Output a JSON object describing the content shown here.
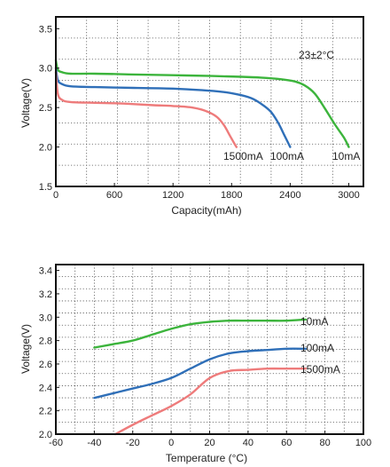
{
  "chart_data": [
    {
      "type": "line",
      "xlabel": "Capacity(mAh)",
      "ylabel": "Voltage(V)",
      "xlim": [
        0,
        3150
      ],
      "ylim": [
        1.5,
        3.65
      ],
      "xticks": [
        0,
        600,
        1200,
        1800,
        2400,
        3000
      ],
      "xtick_labels": [
        "0",
        "600",
        "1200",
        "1800",
        "2400",
        "3000"
      ],
      "yticks": [
        1.5,
        2.0,
        2.5,
        3.0,
        3.5
      ],
      "ytick_labels": [
        "1.5",
        "2.0",
        "2.5",
        "3.0",
        "3.5"
      ],
      "grid": true,
      "annotation": "23±2°C",
      "series": [
        {
          "name": "10mA",
          "color": "#3cb43c",
          "x": [
            0,
            20,
            60,
            150,
            400,
            800,
            1200,
            1600,
            1900,
            2100,
            2300,
            2450,
            2550,
            2650,
            2750,
            2850,
            2950,
            3000
          ],
          "y": [
            3.1,
            2.98,
            2.95,
            2.93,
            2.93,
            2.92,
            2.91,
            2.9,
            2.89,
            2.88,
            2.86,
            2.83,
            2.78,
            2.68,
            2.5,
            2.3,
            2.12,
            2.0
          ]
        },
        {
          "name": "100mA",
          "color": "#2f6fb8",
          "x": [
            0,
            20,
            60,
            150,
            400,
            800,
            1200,
            1500,
            1700,
            1850,
            2000,
            2100,
            2200,
            2280,
            2340,
            2400
          ],
          "y": [
            3.0,
            2.85,
            2.8,
            2.77,
            2.76,
            2.75,
            2.74,
            2.72,
            2.7,
            2.67,
            2.62,
            2.55,
            2.45,
            2.3,
            2.15,
            2.0
          ]
        },
        {
          "name": "1500mA",
          "color": "#ee7b7b",
          "x": [
            0,
            20,
            60,
            150,
            400,
            700,
            1000,
            1200,
            1400,
            1550,
            1650,
            1720,
            1780,
            1830,
            1850
          ],
          "y": [
            2.95,
            2.68,
            2.6,
            2.57,
            2.56,
            2.55,
            2.53,
            2.52,
            2.5,
            2.45,
            2.38,
            2.28,
            2.15,
            2.04,
            2.0
          ]
        }
      ]
    },
    {
      "type": "line",
      "xlabel": "Temperature (°C)",
      "ylabel": "Voltage(V)",
      "xlim": [
        -60,
        100
      ],
      "ylim": [
        2.0,
        3.45
      ],
      "xticks": [
        -60,
        -40,
        -20,
        0,
        20,
        40,
        60,
        80,
        100
      ],
      "xtick_labels": [
        "-60",
        "-40",
        "-20",
        "0",
        "20",
        "40",
        "60",
        "80",
        "100"
      ],
      "yticks": [
        2.0,
        2.2,
        2.4,
        2.6,
        2.8,
        3.0,
        3.2,
        3.4
      ],
      "ytick_labels": [
        "2.0",
        "2.2",
        "2.4",
        "2.6",
        "2.8",
        "3.0",
        "3.2",
        "3.4"
      ],
      "grid": true,
      "series": [
        {
          "name": "10mA",
          "color": "#3cb43c",
          "x": [
            -40,
            -30,
            -20,
            -10,
            0,
            10,
            20,
            30,
            40,
            50,
            60,
            70
          ],
          "y": [
            2.74,
            2.77,
            2.8,
            2.85,
            2.9,
            2.94,
            2.96,
            2.97,
            2.97,
            2.97,
            2.97,
            2.98
          ]
        },
        {
          "name": "100mA",
          "color": "#2f6fb8",
          "x": [
            -40,
            -30,
            -20,
            -10,
            0,
            10,
            20,
            30,
            40,
            50,
            60,
            70
          ],
          "y": [
            2.31,
            2.35,
            2.39,
            2.43,
            2.48,
            2.56,
            2.64,
            2.69,
            2.71,
            2.72,
            2.73,
            2.73
          ]
        },
        {
          "name": "1500mA",
          "color": "#ee7b7b",
          "x": [
            -29,
            -20,
            -10,
            0,
            10,
            20,
            30,
            40,
            50,
            60,
            70
          ],
          "y": [
            2.0,
            2.08,
            2.16,
            2.24,
            2.34,
            2.48,
            2.54,
            2.55,
            2.56,
            2.56,
            2.56
          ]
        }
      ]
    }
  ]
}
